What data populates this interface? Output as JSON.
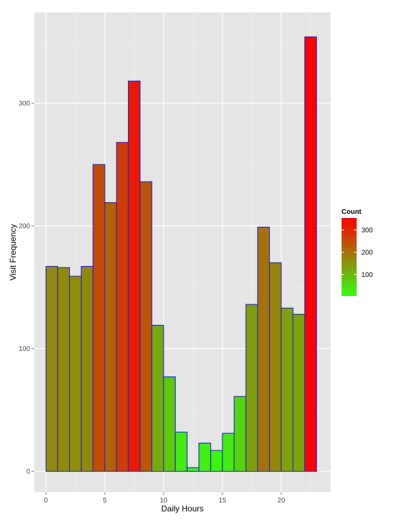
{
  "chart_data": {
    "type": "bar",
    "xlabel": "Daily Hours",
    "ylabel": "Visit Frequency",
    "x": [
      0,
      1,
      2,
      3,
      4,
      5,
      6,
      7,
      8,
      9,
      10,
      11,
      12,
      13,
      14,
      15,
      16,
      17,
      18,
      19,
      20,
      21,
      22
    ],
    "values": [
      167,
      166,
      159,
      167,
      250,
      219,
      268,
      318,
      236,
      119,
      77,
      32,
      3,
      23,
      17,
      31,
      61,
      136,
      199,
      170,
      133,
      128,
      354
    ],
    "xlim": [
      -1,
      24.2
    ],
    "ylim": [
      -17,
      374
    ],
    "x_ticks": [
      0,
      5,
      10,
      15,
      20
    ],
    "y_ticks": [
      0,
      100,
      200,
      300
    ],
    "grid": true,
    "bar_outline_color": "#1f1fd6",
    "panel_background": "#e5e5e5",
    "legend": {
      "title": "Count",
      "placement": "right",
      "ticks": [
        100,
        200,
        300
      ],
      "low_color": "#33ff11",
      "high_color": "#ff0000",
      "range": [
        3,
        354
      ]
    }
  }
}
